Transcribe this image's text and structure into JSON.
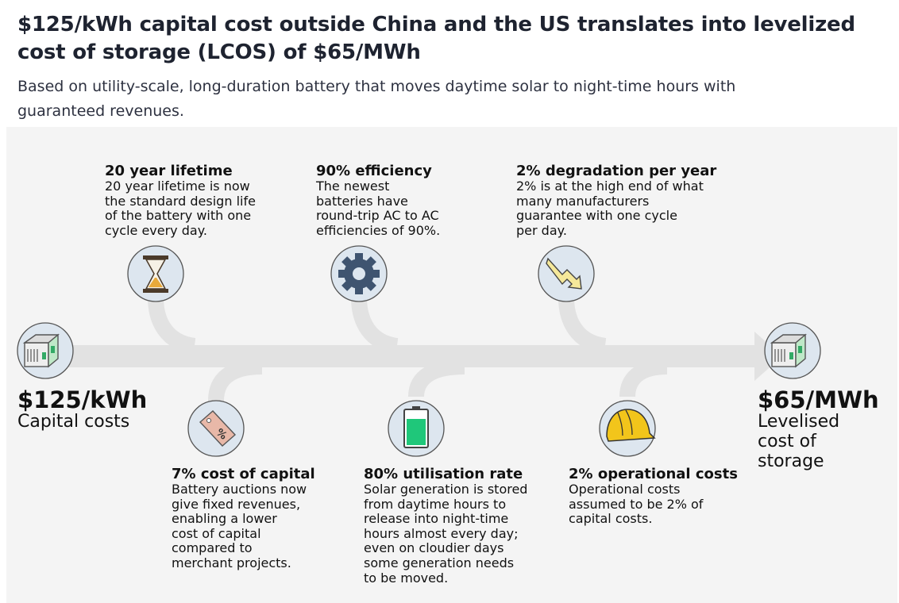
{
  "title": "$125/kWh capital cost outside China and the US translates into levelized cost of storage (LCOS) of $65/MWh",
  "subtitle": "Based on utility-scale, long-duration battery that moves daytime solar to night-time hours with guaranteed revenues.",
  "start": {
    "value": "$125/kWh",
    "label": "Capital costs",
    "icon": "battery-container-icon"
  },
  "end": {
    "value": "$65/MWh",
    "label_lines": [
      "Levelised",
      "cost of",
      "storage"
    ],
    "icon": "battery-container-icon"
  },
  "top_factors": [
    {
      "heading": "20 year lifetime",
      "lines": [
        "20 year lifetime is now",
        "the standard design life",
        "of the battery with one",
        "cycle every day."
      ],
      "icon": "hourglass-icon"
    },
    {
      "heading": "90% efficiency",
      "lines": [
        "The newest",
        "batteries have",
        "round-trip AC to AC",
        "efficiencies of 90%."
      ],
      "icon": "gear-icon"
    },
    {
      "heading": "2% degradation per year",
      "lines": [
        "2% is at the high end of what",
        "many manufacturers",
        "guarantee with one cycle",
        "per day."
      ],
      "icon": "decline-arrow-icon"
    }
  ],
  "bottom_factors": [
    {
      "heading": "7% cost of capital",
      "lines": [
        "Battery auctions now",
        "give fixed revenues,",
        "enabling a lower",
        "cost of capital",
        "compared to",
        "merchant projects."
      ],
      "icon": "percent-tag-icon"
    },
    {
      "heading": "80% utilisation rate",
      "lines": [
        "Solar generation is stored",
        "from daytime hours to",
        "release into night-time",
        "hours almost every day;",
        "even on cloudier days",
        "some generation needs",
        "to be moved."
      ],
      "icon": "battery-level-icon"
    },
    {
      "heading": "2% operational costs",
      "lines": [
        "Operational costs",
        "assumed to be 2% of",
        "capital costs."
      ],
      "icon": "hard-hat-icon"
    }
  ],
  "colors": {
    "arrow": "#e2e2e2",
    "icon_circle": "#dde6ef",
    "hourglass_sand": "#e8a93a",
    "battery_fill": "#1fc77a",
    "hard_hat": "#f2c51b",
    "tag": "#e8b8a8"
  }
}
